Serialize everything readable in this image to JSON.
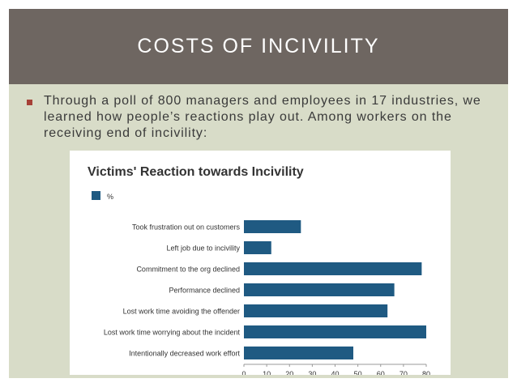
{
  "slide": {
    "title": "COSTS OF INCIVILITY",
    "bullet": "Through a poll of 800 managers and employees in 17 industries, we learned how people’s reactions play out. Among workers on the receiving end of incivility:"
  },
  "colors": {
    "title_band": "#6e6661",
    "slide_bg": "#d8dcc8",
    "bullet_marker": "#a64037",
    "bar": "#1f5a82"
  },
  "chart_data": {
    "type": "bar",
    "orientation": "horizontal",
    "title": "Victims' Reaction towards Incivility",
    "legend": {
      "entries": [
        "%"
      ],
      "placement": "top-left"
    },
    "categories": [
      "Took frustration out on customers",
      "Left job due to incivility",
      "Commitment to the org declined",
      "Performance declined",
      "Lost work time avoiding the offender",
      "Lost work time worrying about the incident",
      "Intentionally decreased work effort"
    ],
    "series": [
      {
        "name": "%",
        "values": [
          25,
          12,
          78,
          66,
          63,
          80,
          48
        ]
      }
    ],
    "xlim": [
      0,
      80
    ],
    "xticks": [
      0,
      10,
      20,
      30,
      40,
      50,
      60,
      70,
      80
    ],
    "grid": false
  }
}
